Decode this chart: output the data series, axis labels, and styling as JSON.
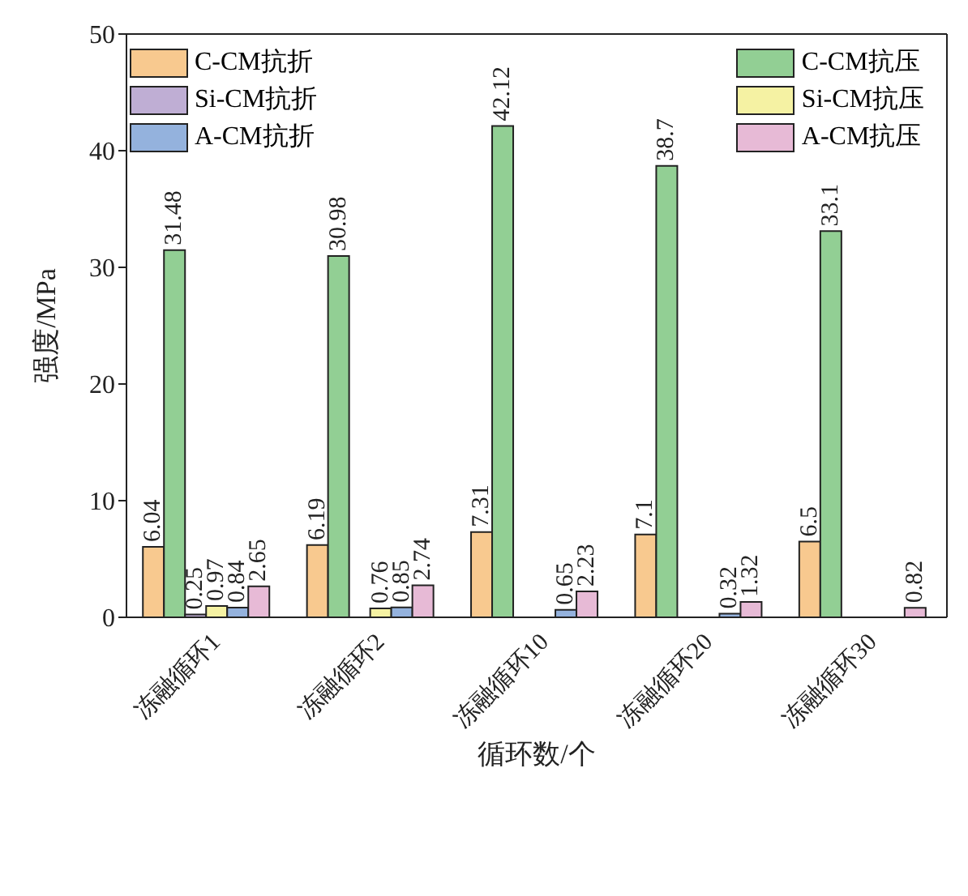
{
  "chart_data": {
    "type": "bar",
    "xlabel": "循环数/个",
    "ylabel": "强度/MPa",
    "categories": [
      "冻融循环1",
      "冻融循环2",
      "冻融循环10",
      "冻融循环20",
      "冻融循环30"
    ],
    "series": [
      {
        "name": "C-CM抗折",
        "color": "#f8c98f",
        "values": [
          6.04,
          6.19,
          7.31,
          7.1,
          6.5
        ]
      },
      {
        "name": "C-CM抗压",
        "color": "#92cf94",
        "values": [
          31.48,
          30.98,
          42.12,
          38.7,
          33.1
        ]
      },
      {
        "name": "Si-CM抗折",
        "color": "#bfaed4",
        "values": [
          0.25,
          null,
          null,
          null,
          null
        ]
      },
      {
        "name": "Si-CM抗压",
        "color": "#f5f2a3",
        "values": [
          0.97,
          0.76,
          null,
          null,
          null
        ]
      },
      {
        "name": "A-CM抗折",
        "color": "#94b2dd",
        "values": [
          0.84,
          0.85,
          0.65,
          0.32,
          null
        ]
      },
      {
        "name": "A-CM抗压",
        "color": "#e7bad6",
        "values": [
          2.65,
          2.74,
          2.23,
          1.32,
          0.82
        ]
      }
    ],
    "ylim": [
      0,
      50
    ],
    "yticks": [
      0,
      10,
      20,
      30,
      40,
      50
    ],
    "data_labels": true,
    "legend": "top",
    "grid": false
  }
}
